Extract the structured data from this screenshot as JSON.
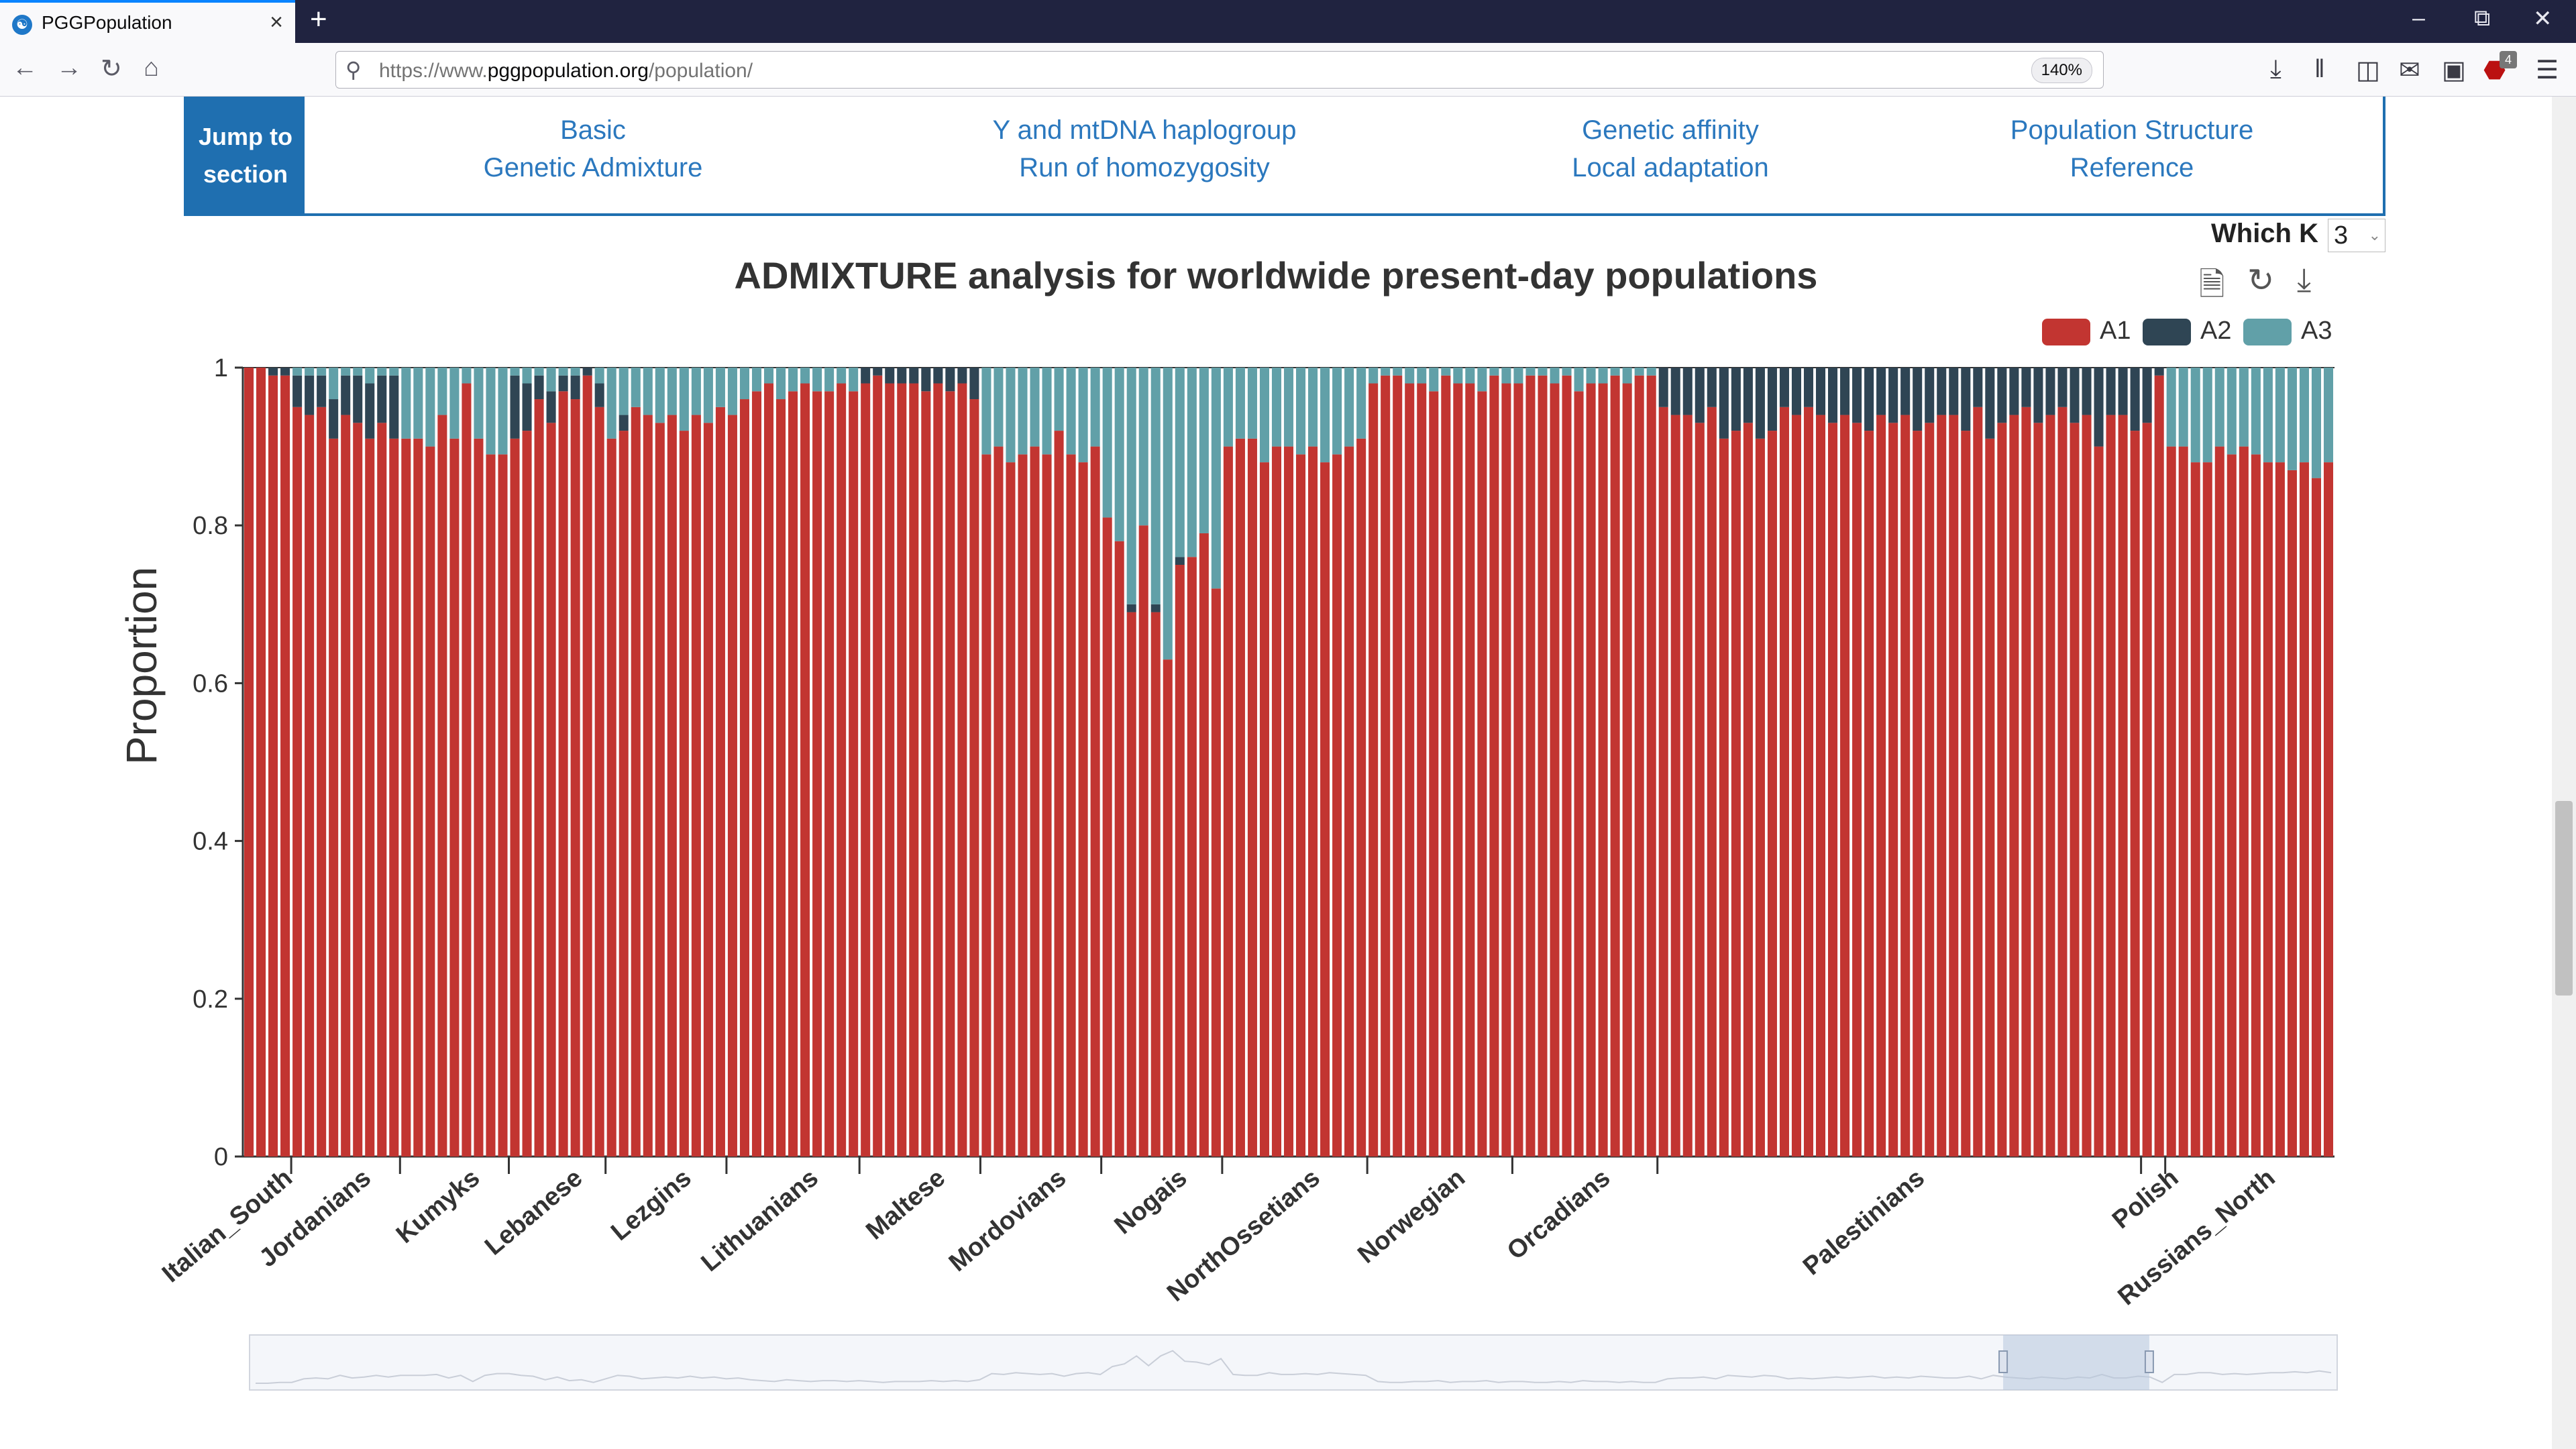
{
  "browser": {
    "tab_title": "PGGPopulation",
    "tab_close_icon": "×",
    "new_tab_icon": "+",
    "url_prefix": "https://www.",
    "url_domain": "pggpopulation.org",
    "url_path": "/population/",
    "zoom": "140%"
  },
  "jump": {
    "button": "Jump to section",
    "links": [
      {
        "line1": "Basic",
        "line2": "Genetic Admixture"
      },
      {
        "line1": "Y and mtDNA haplogroup",
        "line2": "Run of homozygosity"
      },
      {
        "line1": "Genetic affinity",
        "line2": "Local adaptation"
      },
      {
        "line1": "Population Structure",
        "line2": "Reference"
      }
    ]
  },
  "which_k": {
    "label": "Which K",
    "value": "3"
  },
  "chart_data": {
    "type": "bar",
    "stacked": true,
    "title": "ADMIXTURE analysis for worldwide present-day populations",
    "ylabel": "Proportion",
    "xlabel": "",
    "ylim": [
      0,
      1
    ],
    "yticks": [
      "0",
      "0.2",
      "0.4",
      "0.6",
      "0.8",
      "1"
    ],
    "legend": {
      "position": "top-right",
      "items": [
        "A1",
        "A2",
        "A3"
      ]
    },
    "colors": {
      "A1": "#c23531",
      "A2": "#2f4554",
      "A3": "#61a0a8"
    },
    "categories": [
      "Italian_South",
      "Jordanians",
      "Kumyks",
      "Lebanese",
      "Lezgins",
      "Lithuanians",
      "Maltese",
      "Mordovians",
      "Nogais",
      "NorthOssetians",
      "Norwegian",
      "Orcadians",
      "Palestinians",
      "Polish",
      "Russians_North"
    ],
    "groups": [
      {
        "label": "Italian_South",
        "a1": [
          1.0,
          1.0,
          0.99,
          0.99
        ],
        "a2": [
          0,
          0,
          0.01,
          0.01
        ]
      },
      {
        "label": "Jordanians",
        "a1": [
          0.95,
          0.94,
          0.95,
          0.91,
          0.94,
          0.93,
          0.91,
          0.93,
          0.91
        ],
        "a2": [
          0.04,
          0.05,
          0.04,
          0.05,
          0.05,
          0.06,
          0.07,
          0.06,
          0.08
        ]
      },
      {
        "label": "Kumyks",
        "a1": [
          0.91,
          0.91,
          0.9,
          0.94,
          0.91,
          0.98,
          0.91,
          0.89,
          0.89
        ],
        "a2": [
          0,
          0,
          0,
          0,
          0,
          0,
          0,
          0,
          0
        ]
      },
      {
        "label": "Lebanese",
        "a1": [
          0.91,
          0.92,
          0.96,
          0.93,
          0.97,
          0.96,
          0.99,
          0.95
        ],
        "a2": [
          0.08,
          0.06,
          0.03,
          0.04,
          0.02,
          0.03,
          0.01,
          0.03
        ]
      },
      {
        "label": "Lezgins",
        "a1": [
          0.91,
          0.92,
          0.95,
          0.94,
          0.93,
          0.94,
          0.92,
          0.94,
          0.93,
          0.95
        ],
        "a2": [
          0,
          0.02,
          0,
          0,
          0,
          0,
          0,
          0,
          0,
          0
        ]
      },
      {
        "label": "Lithuanians",
        "a1": [
          0.94,
          0.96,
          0.97,
          0.98,
          0.96,
          0.97,
          0.98,
          0.97,
          0.97,
          0.98,
          0.97
        ],
        "a2": [
          0,
          0,
          0,
          0,
          0,
          0,
          0,
          0,
          0,
          0,
          0
        ]
      },
      {
        "label": "Maltese",
        "a1": [
          0.98,
          0.99,
          0.98,
          0.98,
          0.98,
          0.97,
          0.98,
          0.97,
          0.98,
          0.96
        ],
        "a2": [
          0.02,
          0.01,
          0.02,
          0.02,
          0.02,
          0.03,
          0.02,
          0.03,
          0.02,
          0.04
        ]
      },
      {
        "label": "Mordovians",
        "a1": [
          0.89,
          0.9,
          0.88,
          0.89,
          0.9,
          0.89,
          0.92,
          0.89,
          0.88,
          0.9
        ],
        "a2": [
          0,
          0,
          0,
          0,
          0,
          0,
          0,
          0,
          0,
          0
        ]
      },
      {
        "label": "Nogais",
        "a1": [
          0.81,
          0.78,
          0.69,
          0.8,
          0.69,
          0.63,
          0.75,
          0.76,
          0.79,
          0.72
        ],
        "a2": [
          0,
          0,
          0.01,
          0,
          0.01,
          0,
          0.01,
          0,
          0,
          0
        ]
      },
      {
        "label": "NorthOssetians",
        "a1": [
          0.9,
          0.91,
          0.91,
          0.88,
          0.9,
          0.9,
          0.89,
          0.9,
          0.88,
          0.89,
          0.9,
          0.91
        ],
        "a2": [
          0,
          0,
          0,
          0,
          0,
          0,
          0,
          0,
          0,
          0,
          0,
          0
        ]
      },
      {
        "label": "Norwegian",
        "a1": [
          0.98,
          0.99,
          0.99,
          0.98,
          0.98,
          0.97,
          0.99,
          0.98,
          0.98,
          0.97,
          0.99,
          0.98
        ],
        "a2": [
          0,
          0,
          0,
          0,
          0,
          0,
          0,
          0,
          0,
          0,
          0,
          0
        ]
      },
      {
        "label": "Orcadians",
        "a1": [
          0.98,
          0.99,
          0.99,
          0.98,
          0.99,
          0.97,
          0.98,
          0.98,
          0.99,
          0.98,
          0.99,
          0.99
        ],
        "a2": [
          0,
          0,
          0,
          0,
          0,
          0,
          0,
          0,
          0,
          0,
          0,
          0
        ]
      },
      {
        "label": "Palestinians",
        "a1": [
          0.95,
          0.94,
          0.94,
          0.93,
          0.95,
          0.91,
          0.92,
          0.93,
          0.91,
          0.92,
          0.95,
          0.94,
          0.95,
          0.94,
          0.93,
          0.94,
          0.93,
          0.92,
          0.94,
          0.93,
          0.94,
          0.92,
          0.93,
          0.94,
          0.94,
          0.92,
          0.95,
          0.91,
          0.93,
          0.94,
          0.95,
          0.93,
          0.94,
          0.95,
          0.93,
          0.94,
          0.9,
          0.94,
          0.94,
          0.92
        ],
        "a2": [
          0.05,
          0.06,
          0.06,
          0.07,
          0.05,
          0.09,
          0.08,
          0.07,
          0.09,
          0.08,
          0.05,
          0.06,
          0.05,
          0.06,
          0.07,
          0.06,
          0.07,
          0.08,
          0.06,
          0.07,
          0.06,
          0.08,
          0.07,
          0.06,
          0.06,
          0.08,
          0.05,
          0.09,
          0.07,
          0.06,
          0.05,
          0.07,
          0.06,
          0.05,
          0.07,
          0.06,
          0.1,
          0.06,
          0.06,
          0.08
        ]
      },
      {
        "label": "Polish",
        "a1": [
          0.93,
          0.99
        ],
        "a2": [
          0.07,
          0.01
        ]
      },
      {
        "label": "Russians_North",
        "a1": [
          0.9,
          0.9,
          0.88,
          0.88,
          0.9,
          0.89,
          0.9,
          0.89,
          0.88,
          0.88,
          0.87,
          0.88,
          0.86,
          0.88
        ],
        "a2": [
          0,
          0,
          0,
          0,
          0,
          0,
          0,
          0,
          0,
          0,
          0,
          0,
          0,
          0
        ]
      }
    ],
    "grid": false,
    "datazoom": {
      "start": 0.84,
      "end": 0.91
    }
  }
}
